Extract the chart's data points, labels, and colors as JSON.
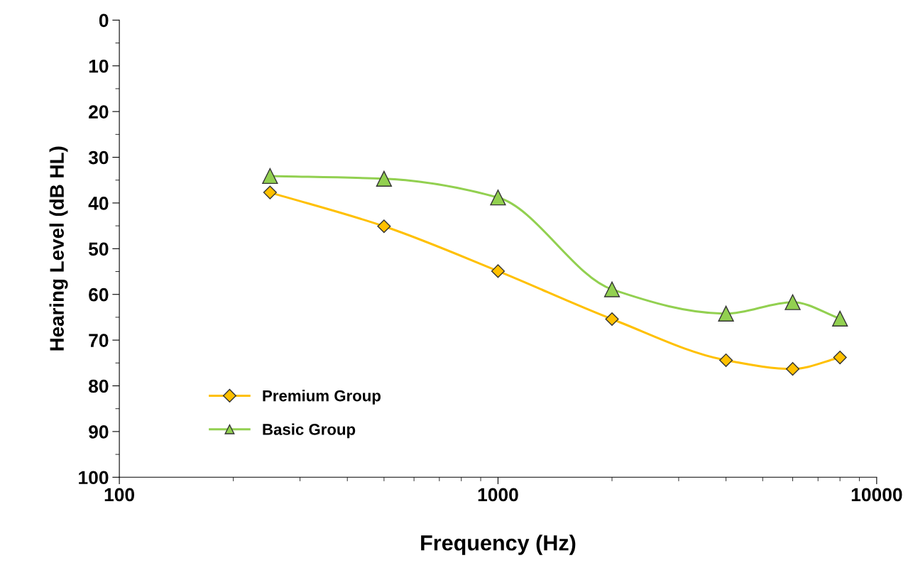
{
  "chart_data": {
    "type": "line",
    "xlabel": "Frequency (Hz)",
    "ylabel": "Hearing Level (dB HL)",
    "x": [
      250,
      500,
      1000,
      2000,
      4000,
      6000,
      8000
    ],
    "series": [
      {
        "name": "Premium Group",
        "color": "#ffc000",
        "marker": "diamond",
        "values": [
          37.7,
          45.1,
          54.9,
          65.4,
          74.4,
          76.3,
          73.8
        ]
      },
      {
        "name": "Basic Group",
        "color": "#92d050",
        "marker": "triangle",
        "values": [
          34.1,
          34.7,
          38.8,
          58.9,
          64.2,
          61.7,
          65.3
        ]
      }
    ],
    "log": "x",
    "xlim": [
      100,
      10000
    ],
    "xticks": [
      100,
      1000,
      10000
    ],
    "ylim": [
      100,
      0
    ],
    "yticks": [
      0,
      10,
      20,
      30,
      40,
      50,
      60,
      70,
      80,
      90,
      100
    ],
    "grid": false,
    "legend": "bottom left",
    "line_style": "solid"
  }
}
